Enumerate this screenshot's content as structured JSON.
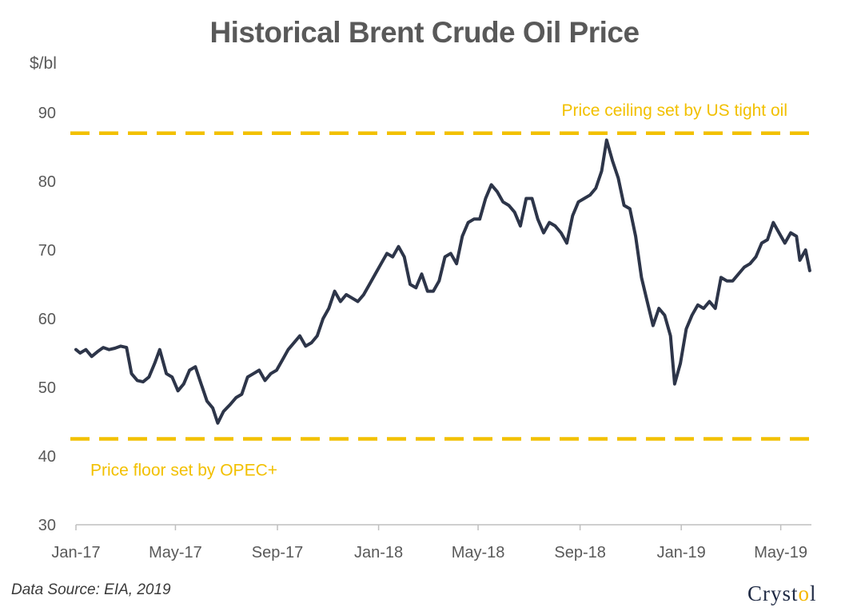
{
  "chart_data": {
    "type": "line",
    "title": "Historical Brent Crude Oil Price",
    "ylabel": "$/bl",
    "xlabel": "",
    "ylim": [
      30,
      90
    ],
    "yticks": [
      30,
      40,
      50,
      60,
      70,
      80,
      90
    ],
    "xrange": [
      "2017-01-01",
      "2019-06-07"
    ],
    "xticks": [
      "Jan-17",
      "May-17",
      "Sep-17",
      "Jan-18",
      "May-18",
      "Sep-18",
      "Jan-19",
      "May-19"
    ],
    "series": [
      {
        "color": "#2d3549",
        "points": [
          [
            "2017-01-01",
            55.5
          ],
          [
            "2017-01-06",
            55.0
          ],
          [
            "2017-01-13",
            55.5
          ],
          [
            "2017-01-20",
            54.5
          ],
          [
            "2017-01-27",
            55.2
          ],
          [
            "2017-02-03",
            55.8
          ],
          [
            "2017-02-10",
            55.5
          ],
          [
            "2017-02-17",
            55.7
          ],
          [
            "2017-02-24",
            56.0
          ],
          [
            "2017-03-03",
            55.8
          ],
          [
            "2017-03-09",
            52.0
          ],
          [
            "2017-03-16",
            51.0
          ],
          [
            "2017-03-23",
            50.8
          ],
          [
            "2017-03-30",
            51.5
          ],
          [
            "2017-04-06",
            53.5
          ],
          [
            "2017-04-12",
            55.5
          ],
          [
            "2017-04-20",
            52.0
          ],
          [
            "2017-04-27",
            51.5
          ],
          [
            "2017-05-04",
            49.5
          ],
          [
            "2017-05-11",
            50.5
          ],
          [
            "2017-05-18",
            52.5
          ],
          [
            "2017-05-25",
            53.0
          ],
          [
            "2017-06-01",
            50.5
          ],
          [
            "2017-06-08",
            48.0
          ],
          [
            "2017-06-15",
            47.0
          ],
          [
            "2017-06-21",
            44.8
          ],
          [
            "2017-06-28",
            46.5
          ],
          [
            "2017-07-06",
            47.5
          ],
          [
            "2017-07-13",
            48.5
          ],
          [
            "2017-07-20",
            49.0
          ],
          [
            "2017-07-27",
            51.5
          ],
          [
            "2017-08-03",
            52.0
          ],
          [
            "2017-08-10",
            52.5
          ],
          [
            "2017-08-17",
            51.0
          ],
          [
            "2017-08-24",
            52.0
          ],
          [
            "2017-08-31",
            52.5
          ],
          [
            "2017-09-07",
            54.0
          ],
          [
            "2017-09-14",
            55.5
          ],
          [
            "2017-09-21",
            56.5
          ],
          [
            "2017-09-28",
            57.5
          ],
          [
            "2017-10-05",
            56.0
          ],
          [
            "2017-10-12",
            56.5
          ],
          [
            "2017-10-19",
            57.5
          ],
          [
            "2017-10-26",
            60.0
          ],
          [
            "2017-11-02",
            61.5
          ],
          [
            "2017-11-09",
            64.0
          ],
          [
            "2017-11-16",
            62.5
          ],
          [
            "2017-11-23",
            63.5
          ],
          [
            "2017-11-30",
            63.0
          ],
          [
            "2017-12-07",
            62.5
          ],
          [
            "2017-12-14",
            63.5
          ],
          [
            "2017-12-21",
            65.0
          ],
          [
            "2017-12-28",
            66.5
          ],
          [
            "2018-01-04",
            68.0
          ],
          [
            "2018-01-11",
            69.5
          ],
          [
            "2018-01-18",
            69.0
          ],
          [
            "2018-01-25",
            70.5
          ],
          [
            "2018-02-01",
            69.0
          ],
          [
            "2018-02-08",
            65.0
          ],
          [
            "2018-02-15",
            64.5
          ],
          [
            "2018-02-22",
            66.5
          ],
          [
            "2018-03-01",
            64.0
          ],
          [
            "2018-03-08",
            64.0
          ],
          [
            "2018-03-15",
            65.5
          ],
          [
            "2018-03-22",
            69.0
          ],
          [
            "2018-03-29",
            69.5
          ],
          [
            "2018-04-05",
            68.0
          ],
          [
            "2018-04-12",
            72.0
          ],
          [
            "2018-04-19",
            74.0
          ],
          [
            "2018-04-26",
            74.5
          ],
          [
            "2018-05-03",
            74.5
          ],
          [
            "2018-05-10",
            77.5
          ],
          [
            "2018-05-17",
            79.5
          ],
          [
            "2018-05-24",
            78.5
          ],
          [
            "2018-05-31",
            77.0
          ],
          [
            "2018-06-07",
            76.5
          ],
          [
            "2018-06-14",
            75.5
          ],
          [
            "2018-06-21",
            73.5
          ],
          [
            "2018-06-28",
            77.5
          ],
          [
            "2018-07-05",
            77.5
          ],
          [
            "2018-07-12",
            74.5
          ],
          [
            "2018-07-19",
            72.5
          ],
          [
            "2018-07-26",
            74.0
          ],
          [
            "2018-08-02",
            73.5
          ],
          [
            "2018-08-09",
            72.5
          ],
          [
            "2018-08-16",
            71.0
          ],
          [
            "2018-08-23",
            75.0
          ],
          [
            "2018-08-30",
            77.0
          ],
          [
            "2018-09-06",
            77.5
          ],
          [
            "2018-09-13",
            78.0
          ],
          [
            "2018-09-20",
            79.0
          ],
          [
            "2018-09-27",
            81.5
          ],
          [
            "2018-10-03",
            86.0
          ],
          [
            "2018-10-10",
            83.0
          ],
          [
            "2018-10-17",
            80.5
          ],
          [
            "2018-10-24",
            76.5
          ],
          [
            "2018-10-31",
            76.0
          ],
          [
            "2018-11-07",
            72.0
          ],
          [
            "2018-11-14",
            66.0
          ],
          [
            "2018-11-21",
            62.5
          ],
          [
            "2018-11-28",
            59.0
          ],
          [
            "2018-12-05",
            61.5
          ],
          [
            "2018-12-12",
            60.5
          ],
          [
            "2018-12-19",
            57.5
          ],
          [
            "2018-12-24",
            50.5
          ],
          [
            "2018-12-31",
            53.5
          ],
          [
            "2019-01-07",
            58.5
          ],
          [
            "2019-01-14",
            60.5
          ],
          [
            "2019-01-21",
            62.0
          ],
          [
            "2019-01-28",
            61.5
          ],
          [
            "2019-02-04",
            62.5
          ],
          [
            "2019-02-11",
            61.5
          ],
          [
            "2019-02-18",
            66.0
          ],
          [
            "2019-02-25",
            65.5
          ],
          [
            "2019-03-04",
            65.5
          ],
          [
            "2019-03-11",
            66.5
          ],
          [
            "2019-03-18",
            67.5
          ],
          [
            "2019-03-25",
            68.0
          ],
          [
            "2019-04-01",
            69.0
          ],
          [
            "2019-04-08",
            71.0
          ],
          [
            "2019-04-15",
            71.5
          ],
          [
            "2019-04-22",
            74.0
          ],
          [
            "2019-04-29",
            72.5
          ],
          [
            "2019-05-06",
            71.0
          ],
          [
            "2019-05-13",
            72.5
          ],
          [
            "2019-05-20",
            72.0
          ],
          [
            "2019-05-24",
            68.5
          ],
          [
            "2019-05-31",
            70.0
          ],
          [
            "2019-06-05",
            67.0
          ]
        ]
      }
    ],
    "reference_lines": [
      {
        "y": 87.0,
        "label": "Price ceiling set by US tight oil",
        "color": "#f2c000",
        "style": "dashed"
      },
      {
        "y": 42.5,
        "label": "Price floor set by OPEC+",
        "color": "#f2c000",
        "style": "dashed"
      }
    ],
    "grid": false,
    "legend": "none",
    "source_note": "Data Source: EIA, 2019"
  },
  "brand": {
    "name_before": "Cryst",
    "name_dot": "o",
    "name_after": "l"
  }
}
